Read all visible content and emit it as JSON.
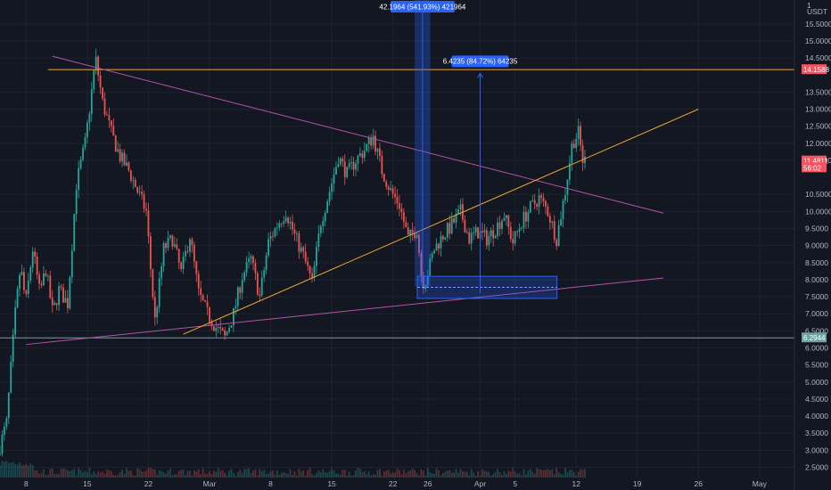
{
  "chart_data": {
    "type": "candlestick",
    "price_axis": {
      "unit": "USDT",
      "ticks": [
        "15.5000",
        "15.0000",
        "14.5000",
        "13.5000",
        "13.0000",
        "12.5000",
        "12.0000",
        "11.5000",
        "10.5000",
        "10.0000",
        "9.5000",
        "9.0000",
        "8.5000",
        "8.0000",
        "7.5000",
        "7.0000",
        "6.5000",
        "6.0000",
        "5.5000",
        "5.0000",
        "4.5000",
        "4.0000",
        "3.5000",
        "3.0000",
        "2.5000"
      ],
      "tick_values": [
        15.5,
        15,
        14.5,
        13.5,
        13,
        12.5,
        12,
        11.5,
        10.5,
        10,
        9.5,
        9,
        8.5,
        8,
        7.5,
        7,
        6.5,
        6,
        5.5,
        5,
        4.5,
        4,
        3.5,
        3,
        2.5
      ],
      "top_label": "1",
      "ylim": [
        2.2,
        16.2
      ]
    },
    "time_axis": {
      "labels": [
        "8",
        "15",
        "22",
        "Mar",
        "8",
        "15",
        "22",
        "26",
        "Apr",
        "5",
        "12",
        "19",
        "26",
        "May"
      ],
      "positions_days": [
        7,
        14,
        21,
        28,
        35,
        42,
        49,
        53,
        59,
        63,
        70,
        77,
        84,
        91
      ],
      "xlim_days": [
        4,
        95
      ]
    },
    "price_labels": [
      {
        "text": "14.1588",
        "value": 14.1588,
        "color": "#f7525f"
      },
      {
        "text": "11.4811",
        "value": 11.4811,
        "color": "#f7525f"
      },
      {
        "text": "56:02",
        "value": 11.28,
        "color": "#f7525f"
      },
      {
        "text": "6.2944",
        "value": 6.2944,
        "color": "#6aa5a0"
      }
    ],
    "horizontal_lines": [
      {
        "value": 14.1588,
        "color": "#f0a830",
        "from_day": 9.5
      },
      {
        "value": 6.2944,
        "color": "#6aa5a0",
        "from_day": 4
      }
    ],
    "trend_lines": [
      {
        "x1_day": 10,
        "y1": 14.55,
        "x2_day": 80,
        "y2": 9.95,
        "color": "#b355a8"
      },
      {
        "x1_day": 7,
        "y1": 6.1,
        "x2_day": 80,
        "y2": 8.05,
        "color": "#b355a8"
      },
      {
        "x1_day": 25,
        "y1": 6.4,
        "x2_day": 84,
        "y2": 13.0,
        "color": "#f0a830"
      }
    ],
    "measurements": [
      {
        "text": "42.1964 (541.93%) 421964",
        "x1_day": 51.5,
        "x2_day": 53.3,
        "y_top": 16.5,
        "y_bottom": 7.8
      },
      {
        "text": "6.4235 (84.72%) 64235",
        "x_day": 59,
        "y_from": 7.6,
        "y_to": 14.05
      }
    ],
    "boxes": [
      {
        "x1_day": 51.8,
        "x2_day": 67.8,
        "y_top": 8.1,
        "y_bottom": 7.45
      }
    ],
    "colors": {
      "up": "#26a69a",
      "down": "#ef5350",
      "background": "#131722",
      "grid": "#1e222d",
      "measure": "#2962ff"
    },
    "series_summary": {
      "start": 3.0,
      "peak": {
        "day": 15.3,
        "value": 14.9
      },
      "low": {
        "day": 30,
        "value": 6.3
      },
      "last": 11.48
    },
    "anchors": [
      [
        4,
        2.9
      ],
      [
        5,
        3.8
      ],
      [
        6,
        7.0
      ],
      [
        6.6,
        8.4
      ],
      [
        7.2,
        7.3
      ],
      [
        8,
        8.9
      ],
      [
        8.8,
        7.6
      ],
      [
        9.5,
        8.3
      ],
      [
        10.3,
        7.0
      ],
      [
        11,
        7.7
      ],
      [
        12,
        7.3
      ],
      [
        13,
        10.8
      ],
      [
        14,
        12.0
      ],
      [
        14.6,
        13.2
      ],
      [
        15.2,
        14.5
      ],
      [
        16,
        13.2
      ],
      [
        17,
        12.3
      ],
      [
        18,
        11.6
      ],
      [
        19,
        11.2
      ],
      [
        20,
        10.6
      ],
      [
        21,
        10.0
      ],
      [
        21.6,
        8.0
      ],
      [
        22,
        6.8
      ],
      [
        23,
        8.9
      ],
      [
        24,
        9.2
      ],
      [
        25,
        8.2
      ],
      [
        26,
        9.3
      ],
      [
        27,
        7.6
      ],
      [
        28,
        7.0
      ],
      [
        29,
        6.6
      ],
      [
        30,
        6.3
      ],
      [
        31,
        7.0
      ],
      [
        32,
        8.1
      ],
      [
        33,
        8.6
      ],
      [
        34,
        7.5
      ],
      [
        35,
        9.1
      ],
      [
        36,
        9.6
      ],
      [
        37,
        10.0
      ],
      [
        38,
        9.3
      ],
      [
        39,
        8.7
      ],
      [
        40,
        7.9
      ],
      [
        41,
        9.7
      ],
      [
        42,
        10.6
      ],
      [
        43,
        11.6
      ],
      [
        44,
        11.1
      ],
      [
        45,
        11.5
      ],
      [
        46,
        11.8
      ],
      [
        47,
        12.2
      ],
      [
        48,
        11.2
      ],
      [
        49,
        10.6
      ],
      [
        50,
        10.2
      ],
      [
        51,
        9.2
      ],
      [
        52,
        9.5
      ],
      [
        52.6,
        7.9
      ],
      [
        53,
        8.0
      ],
      [
        54,
        8.9
      ],
      [
        55,
        9.3
      ],
      [
        56,
        9.6
      ],
      [
        57,
        10.0
      ],
      [
        58,
        9.2
      ],
      [
        59,
        9.4
      ],
      [
        60,
        9.2
      ],
      [
        61,
        9.5
      ],
      [
        62,
        9.9
      ],
      [
        63,
        9.1
      ],
      [
        64,
        9.7
      ],
      [
        65,
        10.1
      ],
      [
        66,
        10.4
      ],
      [
        67,
        10.0
      ],
      [
        68,
        9.2
      ],
      [
        69,
        10.6
      ],
      [
        69.8,
        12.0
      ],
      [
        70.5,
        12.3
      ],
      [
        71,
        11.5
      ]
    ]
  }
}
